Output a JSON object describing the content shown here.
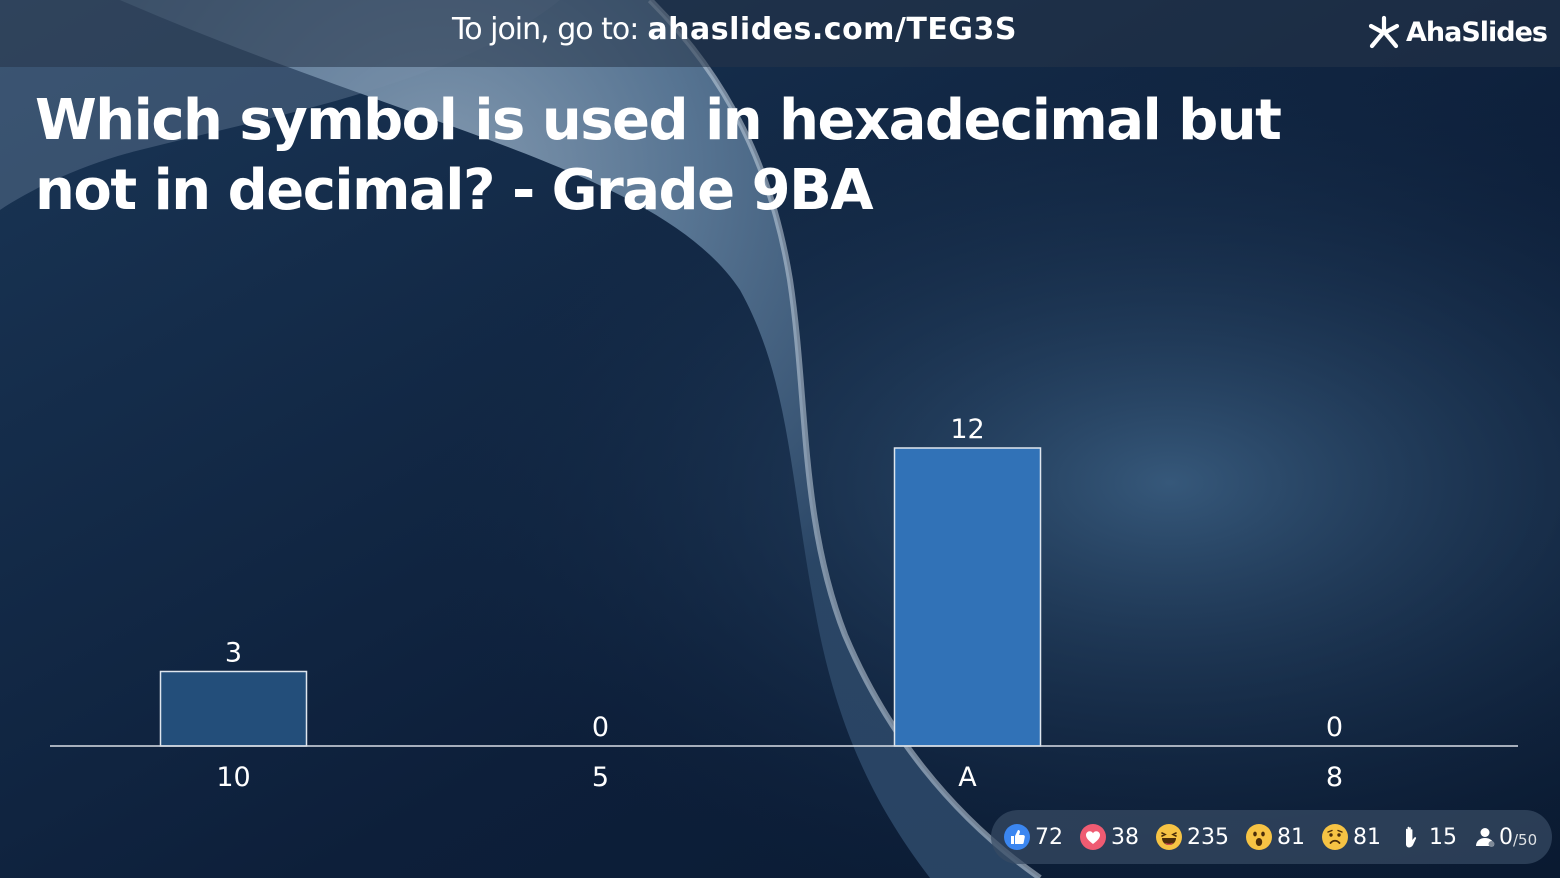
{
  "header": {
    "join_prefix": "To join, go to:",
    "join_code": "ahaslides.com/TEG3S",
    "brand": "AhaSlides"
  },
  "slide": {
    "question": "Which symbol is used in hexadecimal but not in decimal? - Grade 9BA"
  },
  "colors": {
    "bar_default": "#234e7a",
    "bar_highlight": "#3172b7",
    "axis": "#d9dee6",
    "text": "#ffffff",
    "background_dark": "#0c1d36",
    "background_light": "#8fa3b8"
  },
  "chart_data": {
    "type": "bar",
    "categories": [
      "10",
      "5",
      "A",
      "8"
    ],
    "values": [
      3,
      0,
      12,
      0
    ],
    "highlight_index": 2,
    "ylim": [
      0,
      12
    ],
    "grid": false,
    "title": "",
    "xlabel": "",
    "ylabel": ""
  },
  "reactions": [
    {
      "icon": "thumbs-up-icon",
      "count": "72"
    },
    {
      "icon": "heart-icon",
      "count": "38"
    },
    {
      "icon": "laughing-face-icon",
      "count": "235"
    },
    {
      "icon": "surprised-face-icon",
      "count": "81"
    },
    {
      "icon": "sad-face-icon",
      "count": "81"
    },
    {
      "icon": "raised-hand-icon",
      "count": "15"
    }
  ],
  "participants": {
    "icon": "user-icon",
    "count": "0",
    "total": "/50"
  }
}
